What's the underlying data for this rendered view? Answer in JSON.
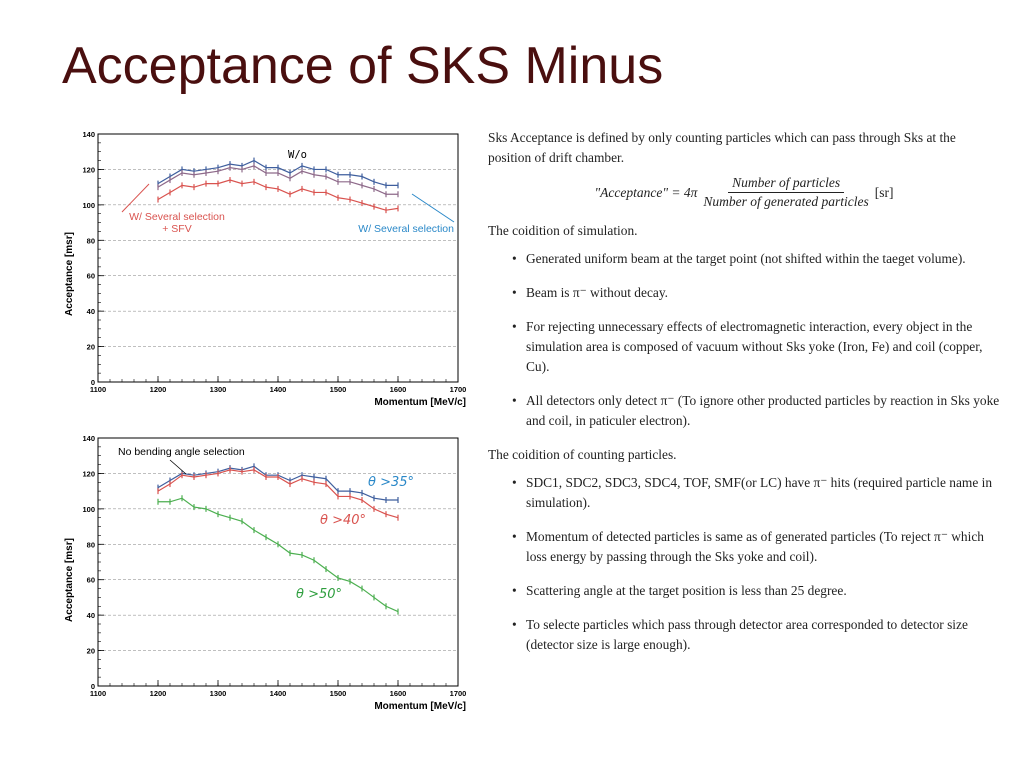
{
  "title": "Acceptance of SKS Minus",
  "chart_data": [
    {
      "type": "line",
      "title": "",
      "xlabel": "Momentum [MeV/c]",
      "ylabel": "Acceptance [msr]",
      "xlim": [
        1100,
        1700
      ],
      "ylim": [
        0,
        140
      ],
      "xticks": [
        1100,
        1200,
        1300,
        1400,
        1500,
        1600,
        1700
      ],
      "yticks": [
        0,
        20,
        40,
        60,
        80,
        100,
        120,
        140
      ],
      "grid": true,
      "x": [
        1200,
        1220,
        1240,
        1260,
        1280,
        1300,
        1320,
        1340,
        1360,
        1380,
        1400,
        1420,
        1440,
        1460,
        1480,
        1500,
        1520,
        1540,
        1560,
        1580,
        1600
      ],
      "series": [
        {
          "name": "W/o",
          "color": "#3f5f9e",
          "values": [
            112,
            116,
            120,
            119,
            120,
            121,
            123,
            122,
            125,
            121,
            121,
            118,
            122,
            120,
            120,
            117,
            117,
            116,
            113,
            111,
            111
          ]
        },
        {
          "name": "W/ Several selection",
          "color": "#8e6a8a",
          "values": [
            110,
            114,
            118,
            117,
            118,
            119,
            121,
            120,
            122,
            118,
            118,
            115,
            119,
            117,
            116,
            113,
            113,
            111,
            109,
            106,
            106
          ]
        },
        {
          "name": "W/ Several selection + SFV",
          "color": "#d9534f",
          "values": [
            103,
            107,
            111,
            110,
            112,
            112,
            114,
            112,
            113,
            110,
            109,
            106,
            109,
            107,
            107,
            104,
            103,
            101,
            99,
            97,
            98
          ]
        }
      ],
      "annotations": [
        "W/o",
        "W/ Several selection",
        "W/ Several selection",
        "+ SFV"
      ]
    },
    {
      "type": "line",
      "title": "",
      "xlabel": "Momentum [MeV/c]",
      "ylabel": "Acceptance [msr]",
      "xlim": [
        1100,
        1700
      ],
      "ylim": [
        0,
        140
      ],
      "xticks": [
        1100,
        1200,
        1300,
        1400,
        1500,
        1600,
        1700
      ],
      "yticks": [
        0,
        20,
        40,
        60,
        80,
        100,
        120,
        140
      ],
      "grid": true,
      "x": [
        1200,
        1220,
        1240,
        1260,
        1280,
        1300,
        1320,
        1340,
        1360,
        1380,
        1400,
        1420,
        1440,
        1460,
        1480,
        1500,
        1520,
        1540,
        1560,
        1580,
        1600
      ],
      "series": [
        {
          "name": "θ >35°",
          "color": "#3f5f9e",
          "values": [
            112,
            116,
            120,
            119,
            120,
            121,
            123,
            122,
            124,
            119,
            119,
            116,
            119,
            118,
            117,
            110,
            110,
            109,
            106,
            105,
            105
          ]
        },
        {
          "name": "θ >40°",
          "color": "#d9534f",
          "values": [
            110,
            114,
            119,
            118,
            119,
            120,
            122,
            121,
            122,
            118,
            118,
            114,
            117,
            115,
            114,
            107,
            107,
            105,
            100,
            97,
            95
          ]
        },
        {
          "name": "θ >50°",
          "color": "#4caf50",
          "values": [
            104,
            104,
            106,
            101,
            100,
            97,
            95,
            93,
            88,
            84,
            80,
            75,
            74,
            71,
            66,
            61,
            59,
            55,
            50,
            45,
            42
          ]
        }
      ],
      "annotations": [
        "No bending angle selection",
        "θ >35°",
        "θ >40°",
        "θ >50°"
      ]
    }
  ],
  "text": {
    "intro": "Sks Acceptance is defined by only counting particles which can pass through Sks at the position of drift chamber.",
    "formula_lhs": "\"Acceptance\" = 4π",
    "formula_num": "Number of particles",
    "formula_den": "Number of generated particles",
    "formula_rhs": "[sr]",
    "sim_heading": "The coidition of simulation.",
    "sim_items": [
      "Generated uniform beam at the target point (not shifted within the taeget volume).",
      "Beam is π⁻ without decay.",
      "For rejecting unnecessary effects of electromagnetic interaction, every object in the simulation area is composed of vacuum without Sks yoke (Iron, Fe) and coil (copper, Cu).",
      "All detectors only detect π⁻ (To ignore other producted particles by reaction in Sks yoke and coil, in paticuler electron)."
    ],
    "count_heading": "The coidition of counting particles.",
    "count_items": [
      "SDC1, SDC2, SDC3, SDC4, TOF, SMF(or LC) have π⁻ hits (required particle name in simulation).",
      "Momentum of detected particles is same as of generated particles (To reject π⁻ which loss energy by passing through the Sks yoke and coil).",
      "Scattering angle at the target position is less than 25 degree.",
      "To selecte particles which pass through detector area corresponded to detector size (detector size is large enough)."
    ]
  }
}
